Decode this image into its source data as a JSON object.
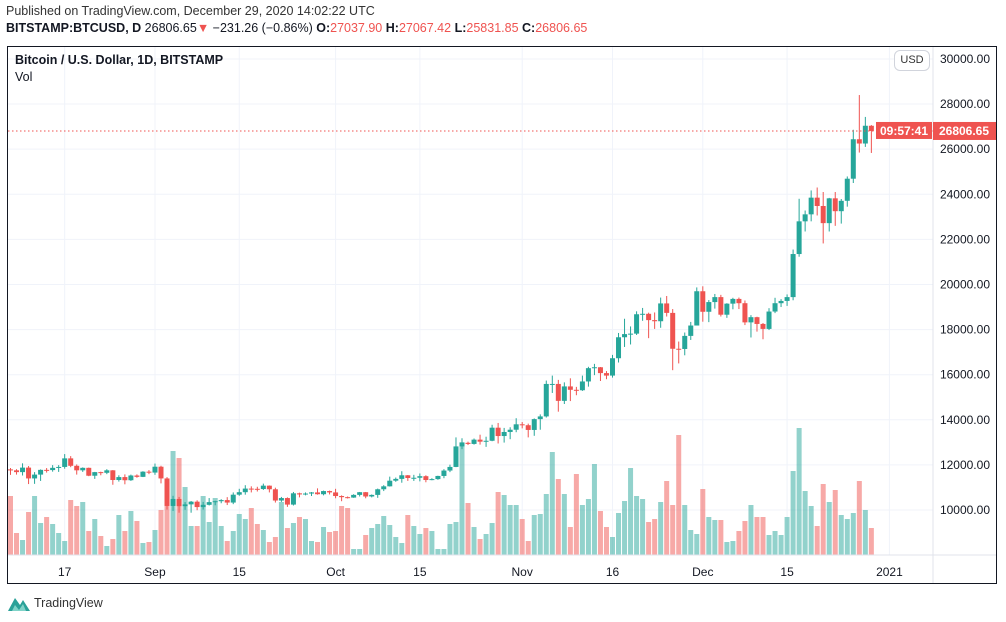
{
  "header": {
    "published": "Published on TradingView.com, December 29, 2020 14:02:22 UTC",
    "symbol": "BITSTAMP:BTCUSD, D",
    "last": "26806.65",
    "change": "−231.26 (−0.86%)",
    "o_label": "O:",
    "o": "27037.90",
    "h_label": "H:",
    "h": "27067.42",
    "l_label": "L:",
    "l": "25831.85",
    "c_label": "C:",
    "c": "26806.65"
  },
  "legend": {
    "title": "Bitcoin / U.S. Dollar, 1D, BITSTAMP",
    "vol": "Vol"
  },
  "currency_button": "USD",
  "price_label": "26806.65",
  "countdown": "09:57:41",
  "brand": "TradingView",
  "colors": {
    "up": "#26a69a",
    "down": "#ef5350",
    "grid": "#f0f3fa"
  },
  "icons": {
    "change": "triangle-down-icon",
    "brand": "tradingview-logo-icon"
  },
  "chart_data": {
    "type": "candlestick",
    "ylim": [
      8005,
      30530
    ],
    "grid": true,
    "y_ticks": [
      "10000.00",
      "12000.00",
      "14000.00",
      "16000.00",
      "18000.00",
      "20000.00",
      "22000.00",
      "24000.00",
      "26000.00",
      "28000.00",
      "30000.00"
    ],
    "x_ticks": [
      [
        "17",
        "2020-08-17"
      ],
      [
        "Sep",
        "2020-09-01"
      ],
      [
        "15",
        "2020-09-15"
      ],
      [
        "Oct",
        "2020-10-01"
      ],
      [
        "15",
        "2020-10-15"
      ],
      [
        "Nov",
        "2020-11-01"
      ],
      [
        "16",
        "2020-11-16"
      ],
      [
        "Dec",
        "2020-12-01"
      ],
      [
        "15",
        "2020-12-15"
      ],
      [
        "2021",
        "2021-01-01"
      ]
    ],
    "last_price": 26806.65,
    "columns": [
      "date",
      "open",
      "high",
      "low",
      "close"
    ],
    "ohlc": [
      [
        "2020-08-08",
        11800,
        11860,
        11560,
        11760
      ],
      [
        "2020-08-09",
        11760,
        11810,
        11570,
        11680
      ],
      [
        "2020-08-10",
        11680,
        12070,
        11530,
        11880
      ],
      [
        "2020-08-11",
        11880,
        11950,
        11150,
        11400
      ],
      [
        "2020-08-12",
        11400,
        11680,
        11160,
        11570
      ],
      [
        "2020-08-13",
        11570,
        11800,
        11290,
        11780
      ],
      [
        "2020-08-14",
        11780,
        11860,
        11660,
        11770
      ],
      [
        "2020-08-15",
        11770,
        11990,
        11700,
        11870
      ],
      [
        "2020-08-16",
        11870,
        11990,
        11690,
        11910
      ],
      [
        "2020-08-17",
        11910,
        12480,
        11830,
        12290
      ],
      [
        "2020-08-18",
        12290,
        12390,
        11900,
        11960
      ],
      [
        "2020-08-19",
        11960,
        12020,
        11570,
        11760
      ],
      [
        "2020-08-20",
        11760,
        11890,
        11690,
        11870
      ],
      [
        "2020-08-21",
        11870,
        11880,
        11500,
        11520
      ],
      [
        "2020-08-22",
        11520,
        11690,
        11380,
        11680
      ],
      [
        "2020-08-23",
        11680,
        11700,
        11540,
        11650
      ],
      [
        "2020-08-24",
        11650,
        11810,
        11590,
        11760
      ],
      [
        "2020-08-25",
        11760,
        11770,
        11120,
        11330
      ],
      [
        "2020-08-26",
        11330,
        11540,
        11260,
        11460
      ],
      [
        "2020-08-27",
        11460,
        11580,
        11140,
        11320
      ],
      [
        "2020-08-28",
        11320,
        11570,
        11290,
        11530
      ],
      [
        "2020-08-29",
        11530,
        11580,
        11430,
        11470
      ],
      [
        "2020-08-30",
        11470,
        11720,
        11460,
        11700
      ],
      [
        "2020-08-31",
        11700,
        11770,
        11590,
        11660
      ],
      [
        "2020-09-01",
        11660,
        12060,
        11560,
        11920
      ],
      [
        "2020-09-02",
        11920,
        11960,
        11180,
        11400
      ],
      [
        "2020-09-03",
        11400,
        11460,
        10020,
        10180
      ],
      [
        "2020-09-04",
        10180,
        10630,
        9960,
        10490
      ],
      [
        "2020-09-05",
        10490,
        10580,
        9880,
        10170
      ],
      [
        "2020-09-06",
        10170,
        10350,
        10010,
        10250
      ],
      [
        "2020-09-07",
        10250,
        10400,
        9880,
        10370
      ],
      [
        "2020-09-08",
        10370,
        10430,
        9990,
        10130
      ],
      [
        "2020-09-09",
        10130,
        10360,
        10020,
        10230
      ],
      [
        "2020-09-10",
        10230,
        10530,
        10200,
        10350
      ],
      [
        "2020-09-11",
        10350,
        10410,
        10210,
        10390
      ],
      [
        "2020-09-12",
        10390,
        10480,
        10300,
        10440
      ],
      [
        "2020-09-13",
        10440,
        10570,
        10220,
        10330
      ],
      [
        "2020-09-14",
        10330,
        10780,
        10260,
        10680
      ],
      [
        "2020-09-15",
        10680,
        10940,
        10630,
        10790
      ],
      [
        "2020-09-16",
        10790,
        11100,
        10680,
        10950
      ],
      [
        "2020-09-17",
        10950,
        11050,
        10780,
        10940
      ],
      [
        "2020-09-18",
        10940,
        11030,
        10820,
        10930
      ],
      [
        "2020-09-19",
        10930,
        11170,
        10890,
        11080
      ],
      [
        "2020-09-20",
        11080,
        11090,
        10780,
        10920
      ],
      [
        "2020-09-21",
        10920,
        10990,
        10330,
        10420
      ],
      [
        "2020-09-22",
        10420,
        10580,
        10360,
        10530
      ],
      [
        "2020-09-23",
        10530,
        10560,
        10140,
        10240
      ],
      [
        "2020-09-24",
        10240,
        10800,
        10200,
        10740
      ],
      [
        "2020-09-25",
        10740,
        10770,
        10560,
        10690
      ],
      [
        "2020-09-26",
        10690,
        10780,
        10650,
        10730
      ],
      [
        "2020-09-27",
        10730,
        10800,
        10620,
        10780
      ],
      [
        "2020-09-28",
        10780,
        10960,
        10680,
        10700
      ],
      [
        "2020-09-29",
        10700,
        10860,
        10650,
        10840
      ],
      [
        "2020-09-30",
        10840,
        10860,
        10690,
        10780
      ],
      [
        "2020-10-01",
        10780,
        10940,
        10520,
        10620
      ],
      [
        "2020-10-02",
        10620,
        10650,
        10390,
        10570
      ],
      [
        "2020-10-03",
        10570,
        10600,
        10510,
        10550
      ],
      [
        "2020-10-04",
        10550,
        10700,
        10540,
        10670
      ],
      [
        "2020-10-05",
        10670,
        10800,
        10600,
        10790
      ],
      [
        "2020-10-06",
        10790,
        10800,
        10520,
        10600
      ],
      [
        "2020-10-07",
        10600,
        10690,
        10560,
        10670
      ],
      [
        "2020-10-08",
        10670,
        10950,
        10540,
        10920
      ],
      [
        "2020-10-09",
        10920,
        11100,
        10840,
        11050
      ],
      [
        "2020-10-10",
        11050,
        11480,
        11040,
        11300
      ],
      [
        "2020-10-11",
        11300,
        11440,
        11250,
        11380
      ],
      [
        "2020-10-12",
        11380,
        11720,
        11210,
        11540
      ],
      [
        "2020-10-13",
        11540,
        11550,
        11290,
        11420
      ],
      [
        "2020-10-14",
        11420,
        11560,
        11290,
        11430
      ],
      [
        "2020-10-15",
        11430,
        11620,
        11270,
        11500
      ],
      [
        "2020-10-16",
        11500,
        11540,
        11230,
        11330
      ],
      [
        "2020-10-17",
        11330,
        11410,
        11320,
        11370
      ],
      [
        "2020-10-18",
        11370,
        11520,
        11340,
        11510
      ],
      [
        "2020-10-19",
        11510,
        11810,
        11410,
        11750
      ],
      [
        "2020-10-20",
        11750,
        12010,
        11680,
        11910
      ],
      [
        "2020-10-21",
        11910,
        13220,
        11900,
        12820
      ],
      [
        "2020-10-22",
        12820,
        13180,
        12700,
        12980
      ],
      [
        "2020-10-23",
        12980,
        13030,
        12880,
        12930
      ],
      [
        "2020-10-24",
        12930,
        13170,
        12900,
        13120
      ],
      [
        "2020-10-25",
        13120,
        13340,
        12900,
        13030
      ],
      [
        "2020-10-26",
        13030,
        13250,
        12800,
        13070
      ],
      [
        "2020-10-27",
        13070,
        13780,
        13050,
        13650
      ],
      [
        "2020-10-28",
        13650,
        13860,
        12950,
        13280
      ],
      [
        "2020-10-29",
        13280,
        13640,
        12990,
        13460
      ],
      [
        "2020-10-30",
        13460,
        13670,
        13140,
        13560
      ],
      [
        "2020-10-31",
        13560,
        14070,
        13450,
        13800
      ],
      [
        "2020-11-01",
        13800,
        13900,
        13620,
        13760
      ],
      [
        "2020-11-02",
        13760,
        13830,
        13220,
        13550
      ],
      [
        "2020-11-03",
        13550,
        14060,
        13290,
        14030
      ],
      [
        "2020-11-04",
        14030,
        14240,
        13560,
        14150
      ],
      [
        "2020-11-05",
        14150,
        15740,
        14100,
        15590
      ],
      [
        "2020-11-06",
        15590,
        15960,
        15190,
        15590
      ],
      [
        "2020-11-07",
        15590,
        15770,
        14360,
        14840
      ],
      [
        "2020-11-08",
        14840,
        15660,
        14700,
        15480
      ],
      [
        "2020-11-09",
        15480,
        15840,
        14830,
        15330
      ],
      [
        "2020-11-10",
        15330,
        15460,
        15090,
        15310
      ],
      [
        "2020-11-11",
        15310,
        15960,
        15280,
        15700
      ],
      [
        "2020-11-12",
        15700,
        16350,
        15470,
        16290
      ],
      [
        "2020-11-13",
        16290,
        16480,
        15980,
        16330
      ],
      [
        "2020-11-14",
        16330,
        16340,
        15720,
        16070
      ],
      [
        "2020-11-15",
        16070,
        16160,
        15800,
        15960
      ],
      [
        "2020-11-16",
        15960,
        16880,
        15870,
        16730
      ],
      [
        "2020-11-17",
        16730,
        17850,
        16540,
        17660
      ],
      [
        "2020-11-18",
        17660,
        18480,
        17230,
        17800
      ],
      [
        "2020-11-19",
        17800,
        18140,
        17340,
        17820
      ],
      [
        "2020-11-20",
        17820,
        18810,
        17760,
        18680
      ],
      [
        "2020-11-21",
        18680,
        18960,
        18390,
        18700
      ],
      [
        "2020-11-22",
        18700,
        18750,
        17620,
        18420
      ],
      [
        "2020-11-23",
        18420,
        18760,
        18030,
        18370
      ],
      [
        "2020-11-24",
        18370,
        19420,
        18080,
        19160
      ],
      [
        "2020-11-25",
        19160,
        19490,
        18580,
        18740
      ],
      [
        "2020-11-26",
        18740,
        18910,
        16200,
        17150
      ],
      [
        "2020-11-27",
        17150,
        17470,
        16500,
        17140
      ],
      [
        "2020-11-28",
        17140,
        17870,
        16860,
        17720
      ],
      [
        "2020-11-29",
        17720,
        18340,
        17540,
        18180
      ],
      [
        "2020-11-30",
        18180,
        19870,
        18180,
        19700
      ],
      [
        "2020-12-01",
        19700,
        19920,
        18350,
        18790
      ],
      [
        "2020-12-02",
        18790,
        19310,
        18330,
        19220
      ],
      [
        "2020-12-03",
        19220,
        19580,
        18930,
        19440
      ],
      [
        "2020-12-04",
        19440,
        19540,
        18580,
        18660
      ],
      [
        "2020-12-05",
        18660,
        19170,
        18520,
        19150
      ],
      [
        "2020-12-06",
        19150,
        19410,
        18900,
        19360
      ],
      [
        "2020-12-07",
        19360,
        19420,
        18910,
        19170
      ],
      [
        "2020-12-08",
        19170,
        19290,
        18200,
        18320
      ],
      [
        "2020-12-09",
        18320,
        18640,
        17650,
        18550
      ],
      [
        "2020-12-10",
        18550,
        18570,
        17910,
        18250
      ],
      [
        "2020-12-11",
        18250,
        18290,
        17570,
        18030
      ],
      [
        "2020-12-12",
        18030,
        18950,
        17980,
        18800
      ],
      [
        "2020-12-13",
        18800,
        19410,
        18730,
        19170
      ],
      [
        "2020-12-14",
        19170,
        19350,
        19000,
        19270
      ],
      [
        "2020-12-15",
        19270,
        19560,
        19050,
        19440
      ],
      [
        "2020-12-16",
        19440,
        21550,
        19300,
        21350
      ],
      [
        "2020-12-17",
        21350,
        23800,
        21230,
        22800
      ],
      [
        "2020-12-18",
        22800,
        23280,
        22350,
        23110
      ],
      [
        "2020-12-19",
        23110,
        24170,
        22800,
        23850
      ],
      [
        "2020-12-20",
        23850,
        24300,
        23060,
        23480
      ],
      [
        "2020-12-21",
        23480,
        24100,
        21820,
        22720
      ],
      [
        "2020-12-22",
        22720,
        23840,
        22350,
        23820
      ],
      [
        "2020-12-23",
        23820,
        24100,
        22600,
        23250
      ],
      [
        "2020-12-24",
        23250,
        23790,
        22700,
        23710
      ],
      [
        "2020-12-25",
        23710,
        24790,
        23450,
        24690
      ],
      [
        "2020-12-26",
        24690,
        26860,
        24500,
        26440
      ],
      [
        "2020-12-27",
        26440,
        28400,
        25850,
        26250
      ],
      [
        "2020-12-28",
        26250,
        27430,
        26100,
        27037.9
      ],
      [
        "2020-12-29",
        27037.9,
        27067.42,
        25831.85,
        26806.65
      ]
    ],
    "volume_relative": [
      59,
      22,
      15,
      43,
      59,
      32,
      38,
      31,
      22,
      14,
      55,
      49,
      53,
      24,
      36,
      19,
      9,
      16,
      40,
      24,
      44,
      34,
      12,
      13,
      25,
      45,
      73,
      104,
      97,
      68,
      29,
      29,
      59,
      33,
      57,
      29,
      14,
      24,
      41,
      36,
      47,
      31,
      25,
      13,
      18,
      53,
      27,
      32,
      38,
      36,
      14,
      13,
      28,
      23,
      24,
      49,
      47,
      6,
      6,
      20,
      27,
      31,
      39,
      30,
      18,
      12,
      40,
      29,
      21,
      27,
      24,
      6,
      6,
      31,
      33,
      113,
      52,
      28,
      16,
      21,
      32,
      63,
      60,
      50,
      50,
      36,
      14,
      40,
      41,
      61,
      103,
      76,
      61,
      28,
      81,
      50,
      56,
      91,
      44,
      28,
      18,
      42,
      54,
      87,
      59,
      56,
      33,
      36,
      53,
      74,
      50,
      120,
      50,
      25,
      21,
      66,
      38,
      35,
      35,
      13,
      14,
      24,
      34,
      50,
      38,
      38,
      20,
      24,
      20,
      38,
      84,
      127,
      64,
      49,
      29,
      71,
      53,
      65,
      40,
      36,
      42,
      74,
      45,
      27
    ]
  }
}
